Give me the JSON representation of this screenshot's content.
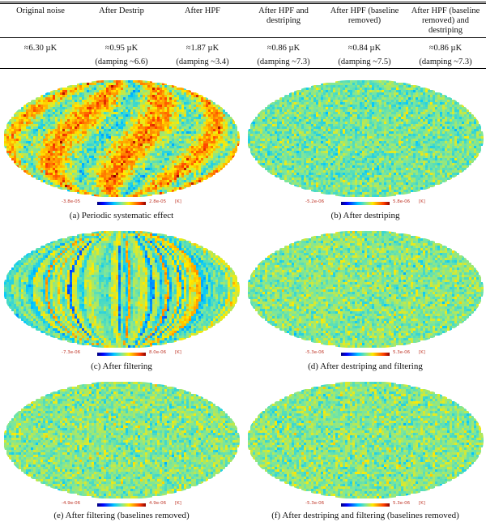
{
  "table": {
    "headers": [
      "Original noise",
      "After Destrip",
      "After HPF",
      "After HPF and destriping",
      "After HPF (baseline removed)",
      "After HPF (baseline removed) and destriping"
    ],
    "values": [
      "≈6.30 µK",
      "≈0.95 µK",
      "≈1.87 µK",
      "≈0.86 µK",
      "≈0.84 µK",
      "≈0.86 µK"
    ],
    "damping": [
      "",
      "(damping ~6.6)",
      "(damping ~3.4)",
      "(damping ~7.3)",
      "(damping ~7.5)",
      "(damping ~7.3)"
    ]
  },
  "panels": [
    {
      "caption": "(a) Periodic systematic effect",
      "cmin": "-3.8e-05",
      "cmax": "2.8e-05",
      "unit": "[K]",
      "style": "periodic",
      "bias": 0.62
    },
    {
      "caption": "(b) After destriping",
      "cmin": "-5.2e-06",
      "cmax": "5.8e-06",
      "unit": "[K]",
      "style": "noise",
      "bias": 0.5
    },
    {
      "caption": "(c) After filtering",
      "cmin": "-7.3e-06",
      "cmax": "8.0e-06",
      "unit": "[K]",
      "style": "stripes",
      "bias": 0.5
    },
    {
      "caption": "(d) After destriping and filtering",
      "cmin": "-5.3e-06",
      "cmax": "5.3e-06",
      "unit": "[K]",
      "style": "noise",
      "bias": 0.52
    },
    {
      "caption": "(e) After filtering (baselines removed)",
      "cmin": "-4.9e-06",
      "cmax": "4.9e-06",
      "unit": "[K]",
      "style": "noise",
      "bias": 0.52
    },
    {
      "caption": "(f) After destriping and filtering (baselines removed)",
      "cmin": "-5.3e-06",
      "cmax": "5.3e-06",
      "unit": "[K]",
      "style": "noise",
      "bias": 0.52
    }
  ],
  "colors": {
    "background": "#ffffff",
    "rule": "#000000",
    "tick_text": "#c0392b"
  }
}
